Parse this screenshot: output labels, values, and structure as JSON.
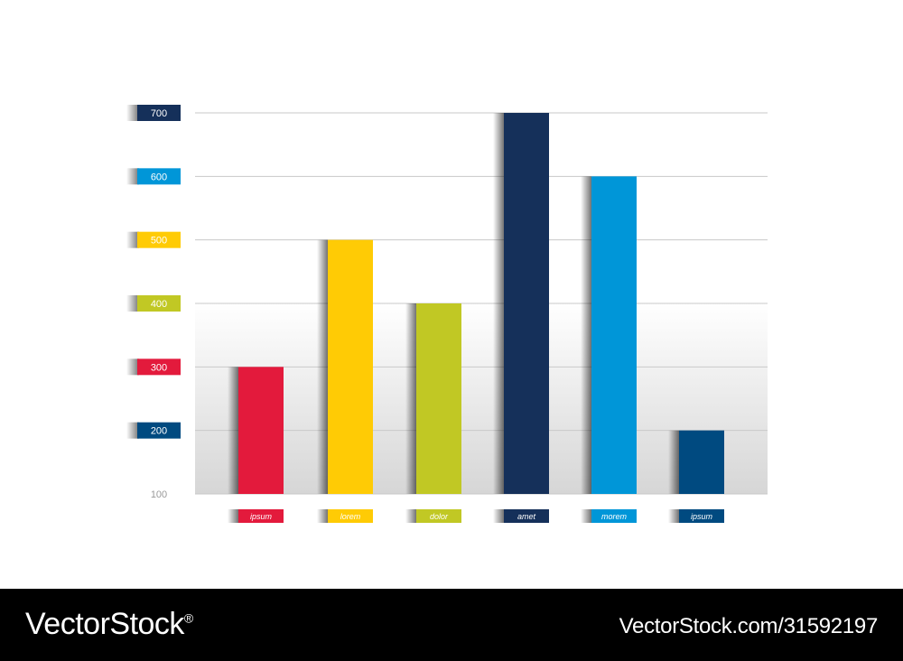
{
  "chart_data": {
    "type": "bar",
    "categories": [
      "ipsum",
      "lorem",
      "dolor",
      "amet",
      "morem",
      "ipsum"
    ],
    "values": [
      300,
      500,
      400,
      700,
      600,
      200
    ],
    "bar_colors": [
      "#e31a3c",
      "#ffcb05",
      "#c1c824",
      "#15305a",
      "#0096d8",
      "#004a80"
    ],
    "yticks": [
      100,
      200,
      300,
      400,
      500,
      600,
      700
    ],
    "ytick_colors": [
      null,
      "#004a80",
      "#e31a3c",
      "#c1c824",
      "#ffcb05",
      "#0096d8",
      "#15305a"
    ],
    "ylim": [
      100,
      700
    ],
    "grid": true,
    "title": "",
    "xlabel": "",
    "ylabel": ""
  },
  "watermark": {
    "brand": "VectorStock",
    "registered_mark": "®",
    "image_id": "VectorStock.com/31592197"
  }
}
